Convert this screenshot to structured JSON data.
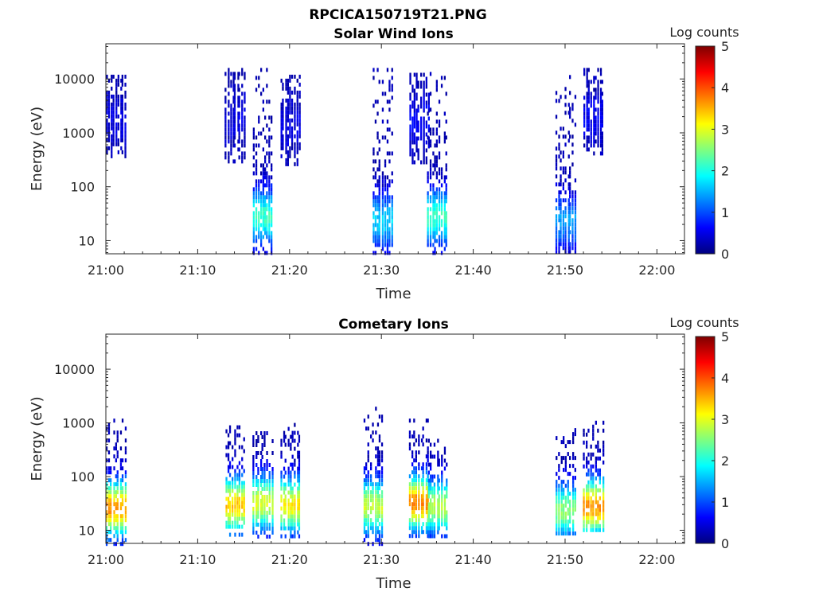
{
  "figure_title": "RPCICA150719T21.PNG",
  "colors": {
    "colormap": [
      "#00007f",
      "#0000ff",
      "#007fff",
      "#00ffff",
      "#7fff7f",
      "#ffff00",
      "#ff7f00",
      "#ff0000",
      "#7f0000"
    ],
    "axis": "#262626"
  },
  "chart_data": [
    {
      "type": "heatmap",
      "title": "Solar Wind Ions",
      "xlabel": "Time",
      "ylabel": "Energy (eV)",
      "yscale": "log",
      "xlim": [
        "21:00",
        "22:03"
      ],
      "ylim": [
        5.7,
        45000
      ],
      "x_ticks": [
        "21:00",
        "21:10",
        "21:20",
        "21:30",
        "21:40",
        "21:50",
        "22:00"
      ],
      "y_ticks": [
        10,
        100,
        1000,
        10000
      ],
      "y_tick_labels": [
        "10",
        "100",
        "1000",
        "10000"
      ],
      "colorbar": {
        "label": "Log counts",
        "range": [
          0,
          5
        ],
        "ticks": [
          "0",
          "1",
          "2",
          "3",
          "4",
          "5"
        ]
      },
      "bursts": [
        {
          "time": "21:01",
          "emin": 400,
          "emax": 12000,
          "peak": 0.3,
          "peak_energy": 2000
        },
        {
          "time": "21:14",
          "emin": 300,
          "emax": 16000,
          "peak": 0.3,
          "peak_energy": 2000
        },
        {
          "time": "21:17",
          "emin": 6,
          "emax": 16000,
          "peak": 2.0,
          "peak_energy": 30
        },
        {
          "time": "21:20",
          "emin": 250,
          "emax": 12000,
          "peak": 0.3,
          "peak_energy": 1500
        },
        {
          "time": "21:30",
          "emin": 6,
          "emax": 16000,
          "peak": 1.5,
          "peak_energy": 25
        },
        {
          "time": "21:34",
          "emin": 300,
          "emax": 13000,
          "peak": 0.4,
          "peak_energy": 2000
        },
        {
          "time": "21:36",
          "emin": 6,
          "emax": 16000,
          "peak": 2.0,
          "peak_energy": 30
        },
        {
          "time": "21:50",
          "emin": 6,
          "emax": 14000,
          "peak": 1.2,
          "peak_energy": 25
        },
        {
          "time": "21:53",
          "emin": 450,
          "emax": 16000,
          "peak": 0.4,
          "peak_energy": 2000
        }
      ]
    },
    {
      "type": "heatmap",
      "title": "Cometary Ions",
      "xlabel": "Time",
      "ylabel": "Energy (eV)",
      "yscale": "log",
      "xlim": [
        "21:00",
        "22:03"
      ],
      "ylim": [
        5.7,
        45000
      ],
      "x_ticks": [
        "21:00",
        "21:10",
        "21:20",
        "21:30",
        "21:40",
        "21:50",
        "22:00"
      ],
      "y_ticks": [
        10,
        100,
        1000,
        10000
      ],
      "y_tick_labels": [
        "10",
        "100",
        "1000",
        "10000"
      ],
      "colorbar": {
        "label": "Log counts",
        "range": [
          0,
          5
        ],
        "ticks": [
          "0",
          "1",
          "2",
          "3",
          "4",
          "5"
        ]
      },
      "bursts": [
        {
          "time": "21:01",
          "emin": 6,
          "emax": 1200,
          "peak": 3.5,
          "peak_energy": 28
        },
        {
          "time": "21:14",
          "emin": 8,
          "emax": 900,
          "peak": 3.2,
          "peak_energy": 32
        },
        {
          "time": "21:17",
          "emin": 8,
          "emax": 700,
          "peak": 2.8,
          "peak_energy": 35
        },
        {
          "time": "21:20",
          "emin": 8,
          "emax": 1000,
          "peak": 3.0,
          "peak_energy": 32
        },
        {
          "time": "21:29",
          "emin": 6,
          "emax": 2000,
          "peak": 2.7,
          "peak_energy": 30
        },
        {
          "time": "21:34",
          "emin": 8,
          "emax": 1200,
          "peak": 3.6,
          "peak_energy": 35
        },
        {
          "time": "21:36",
          "emin": 8,
          "emax": 600,
          "peak": 2.6,
          "peak_energy": 30
        },
        {
          "time": "21:50",
          "emin": 8,
          "emax": 800,
          "peak": 2.4,
          "peak_energy": 25
        },
        {
          "time": "21:53",
          "emin": 10,
          "emax": 1100,
          "peak": 3.5,
          "peak_energy": 30
        }
      ]
    }
  ]
}
